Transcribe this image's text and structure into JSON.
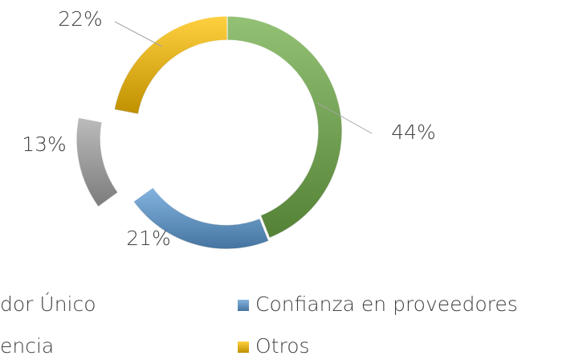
{
  "chart_data": {
    "type": "pie",
    "donut": true,
    "categories": [
      "dor Único",
      "Confianza en proveedores",
      "encia",
      "Otros"
    ],
    "values": [
      44,
      21,
      13,
      22
    ],
    "value_labels": [
      "44%",
      "21%",
      "13%",
      "22%"
    ],
    "colors": [
      "#70ad47",
      "#5b9bd5",
      "#a5a5a5",
      "#ffc000"
    ],
    "legend": "bottom"
  }
}
